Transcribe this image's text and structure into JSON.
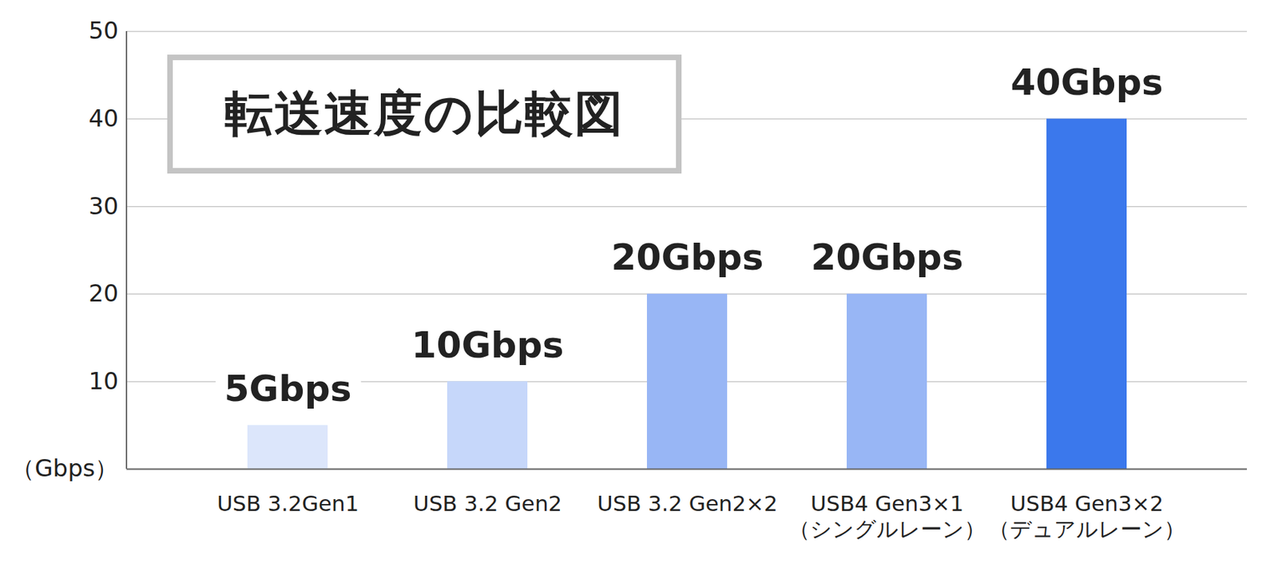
{
  "chart_data": {
    "type": "bar",
    "title": "転送速度の比較図",
    "categories": [
      "USB 3.2Gen1",
      "USB 3.2 Gen2",
      "USB 3.2 Gen2×2",
      "USB4 Gen3×1\n（シングルレーン）",
      "USB4 Gen3×2\n（デュアルレーン）"
    ],
    "values": [
      5,
      10,
      20,
      20,
      40
    ],
    "value_labels": [
      "5Gbps",
      "10Gbps",
      "20Gbps",
      "20Gbps",
      "40Gbps"
    ],
    "data_labels": true,
    "colors": [
      "#dce6fb",
      "#c6d7fa",
      "#98b6f5",
      "#98b6f5",
      "#3b78ec"
    ],
    "ylim": [
      0,
      50
    ],
    "yticks": [
      {
        "value": 0,
        "label": "（Gbps）"
      },
      10,
      20,
      30,
      40,
      50
    ],
    "grid": true
  }
}
